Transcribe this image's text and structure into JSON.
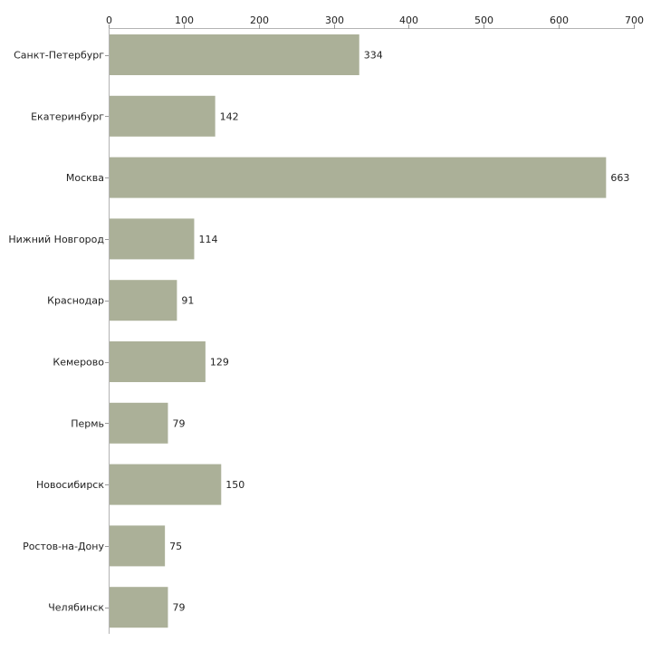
{
  "chart_data": {
    "type": "bar",
    "orientation": "horizontal",
    "title": "",
    "xlabel": "",
    "ylabel": "",
    "xlim": [
      0,
      700
    ],
    "ticks": [
      0,
      100,
      200,
      300,
      400,
      500,
      600,
      700
    ],
    "tick_position": "top",
    "grid": false,
    "bar_color": "#abb098",
    "categories": [
      "Санкт-Петербург",
      "Екатеринбург",
      "Москва",
      "Нижний Новгород",
      "Краснодар",
      "Кемерово",
      "Пермь",
      "Новосибирск",
      "Ростов-на-Дону",
      "Челябинск"
    ],
    "values": [
      334,
      142,
      663,
      114,
      91,
      129,
      79,
      150,
      75,
      79
    ]
  }
}
